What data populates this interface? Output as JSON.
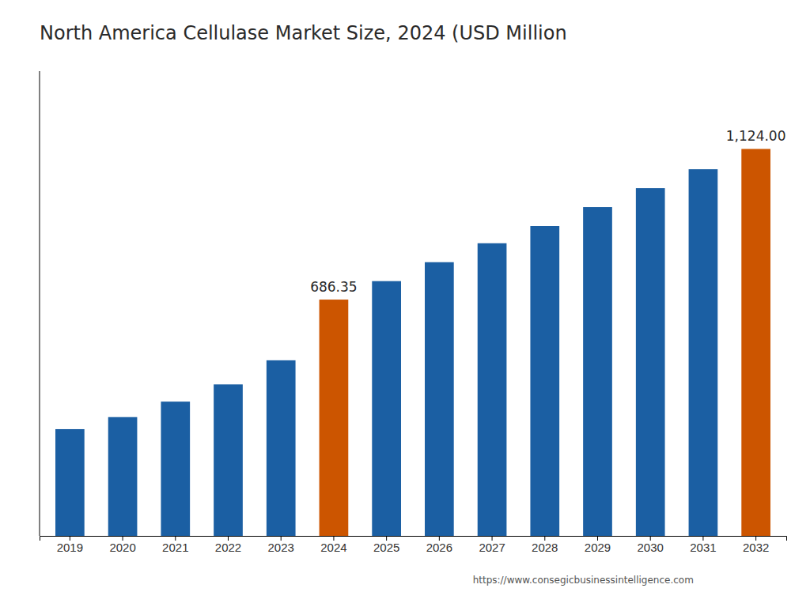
{
  "chart_data": {
    "type": "bar",
    "title": "North America Cellulase Market Size, 2024 (USD Million",
    "categories": [
      "2019",
      "2020",
      "2021",
      "2022",
      "2023",
      "2024",
      "2025",
      "2026",
      "2027",
      "2028",
      "2029",
      "2030",
      "2031",
      "2032"
    ],
    "values": [
      310,
      345,
      390,
      440,
      510,
      686.35,
      740,
      795,
      850,
      900,
      955,
      1010,
      1065,
      1124.0
    ],
    "colors": [
      "#1b5fa3",
      "#1b5fa3",
      "#1b5fa3",
      "#1b5fa3",
      "#1b5fa3",
      "#cc5500",
      "#1b5fa3",
      "#1b5fa3",
      "#1b5fa3",
      "#1b5fa3",
      "#1b5fa3",
      "#1b5fa3",
      "#1b5fa3",
      "#cc5500"
    ],
    "ylim": [
      0,
      1350
    ],
    "tick_labels": "x",
    "grid": false,
    "annotations": [
      {
        "x": "2024",
        "y": 686.35,
        "text": "686.35"
      },
      {
        "x": "2032",
        "y": 1124.0,
        "text": "1,124.00"
      },
      {
        "text": "https://www.consegicbusinessintelligence.com"
      }
    ]
  }
}
